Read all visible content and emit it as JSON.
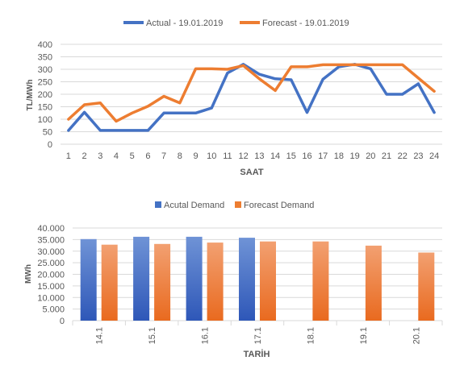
{
  "chart_data": [
    {
      "type": "line",
      "x": [
        1,
        2,
        3,
        4,
        5,
        6,
        7,
        8,
        9,
        10,
        11,
        12,
        13,
        14,
        15,
        16,
        17,
        18,
        19,
        20,
        21,
        22,
        23,
        24
      ],
      "xlabel": "SAAT",
      "ylabel": "TL/MWh",
      "ylim": [
        0,
        400
      ],
      "yticks": [
        0,
        50,
        100,
        150,
        200,
        250,
        300,
        350,
        400
      ],
      "grid": true,
      "legend": "top",
      "series": [
        {
          "name": "Actual - 19.01.2019",
          "color": "#4472c4",
          "values": [
            55,
            128,
            55,
            55,
            55,
            55,
            125,
            125,
            125,
            145,
            285,
            320,
            280,
            262,
            258,
            127,
            260,
            310,
            320,
            302,
            200,
            200,
            242,
            127
          ]
        },
        {
          "name": "Forecast - 19.01.2019",
          "color": "#ed7d31",
          "values": [
            100,
            158,
            165,
            92,
            125,
            152,
            192,
            165,
            302,
            302,
            300,
            315,
            262,
            215,
            310,
            310,
            318,
            318,
            318,
            318,
            318,
            318,
            265,
            212
          ]
        }
      ]
    },
    {
      "type": "bar",
      "categories": [
        "14.1",
        "15.1",
        "16.1",
        "17.1",
        "18.1",
        "19.1",
        "20.1"
      ],
      "xlabel": "TARİH",
      "ylabel": "MWh",
      "ylim": [
        0,
        40000
      ],
      "yticks": [
        "0",
        "5.000",
        "10.000",
        "15.000",
        "20.000",
        "25.000",
        "30.000",
        "35.000",
        "40.000"
      ],
      "grid": true,
      "legend": "top",
      "series": [
        {
          "name": "Acutal Demand",
          "color": "#4472c4",
          "values": [
            35200,
            36200,
            36200,
            35800,
            null,
            null,
            null
          ]
        },
        {
          "name": "Forecast Demand",
          "color": "#ed7d31",
          "values": [
            32800,
            33100,
            33700,
            34200,
            34200,
            32400,
            29400
          ]
        }
      ]
    }
  ]
}
